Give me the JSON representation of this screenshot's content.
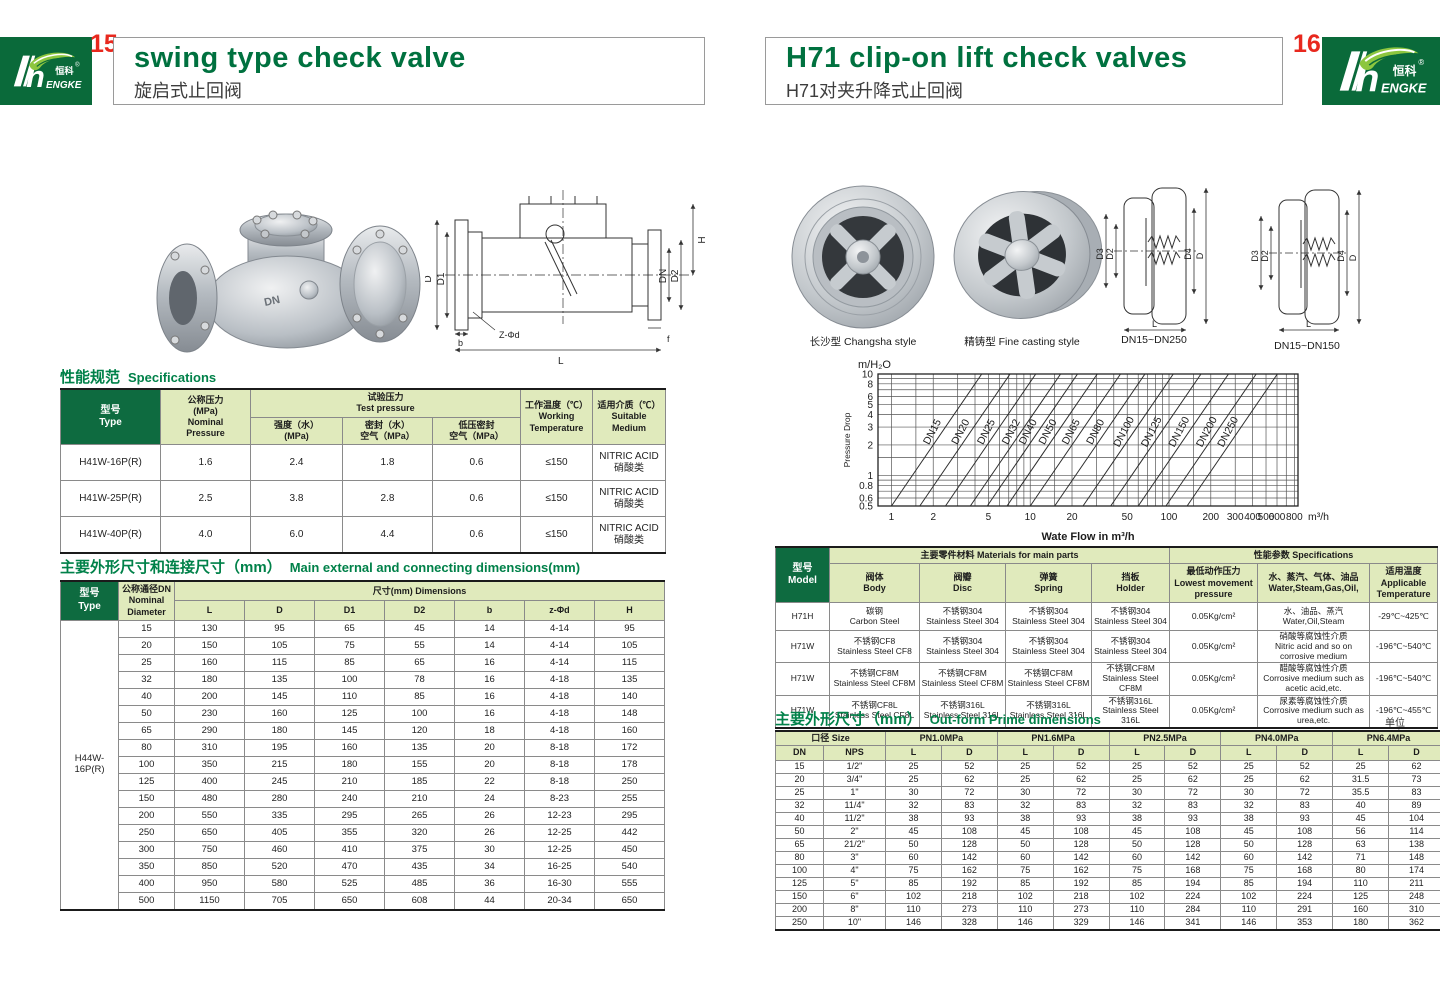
{
  "brand": {
    "logo_cn": "恒科",
    "registered": "®",
    "logo_word": "ENGKE"
  },
  "colors": {
    "dark_green": "#0a6a3a",
    "header_cell_green": "#0e6b40",
    "light_green": "#e0eabc",
    "title_green": "#00713f",
    "red": "#e8281e"
  },
  "page_left": {
    "page_no": "15",
    "title": "swing type check valve",
    "subtitle": "旋启式止回阀",
    "spec_title_zh": "性能规范",
    "spec_title_en": "Specifications",
    "spec_table": {
      "h_type": "型号|Type",
      "h_nominal": "公称压力|(MPa)|Nominal|Pressure",
      "h_test": "试验压力|Test pressure",
      "h_strength": "强度（水）|(MPa)",
      "h_seal": "密封（水）|空气（MPa）",
      "h_low": "低压密封|空气（MPa）",
      "h_working": "工作温度（℃）|Working|Temperature",
      "h_medium": "适用介质（℃）|Suitable|Medium",
      "rows": [
        [
          "H41W-16P(R)",
          "1.6",
          "2.4",
          "1.8",
          "0.6",
          "≤150",
          "NITRIC ACID|硝酸类"
        ],
        [
          "H41W-25P(R)",
          "2.5",
          "3.8",
          "2.8",
          "0.6",
          "≤150",
          "NITRIC ACID|硝酸类"
        ],
        [
          "H41W-40P(R)",
          "4.0",
          "6.0",
          "4.4",
          "0.6",
          "≤150",
          "NITRIC ACID|硝酸类"
        ]
      ]
    },
    "dim_title_zh": "主要外形尺寸和连接尺寸（mm）",
    "dim_title_en": "Main external and connecting dimensions(mm)",
    "dim_table": {
      "h_type": "型号|Type",
      "h_dn": "公称通径DN|Nominal|Diameter",
      "h_dims": "尺寸(mm) Dimensions",
      "cols": [
        "L",
        "D",
        "D1",
        "D2",
        "b",
        "z-Φd",
        "H"
      ],
      "type_label": "H44W-16P(R)",
      "rows": [
        [
          "15",
          "130",
          "95",
          "65",
          "45",
          "14",
          "4-14",
          "95"
        ],
        [
          "20",
          "150",
          "105",
          "75",
          "55",
          "14",
          "4-14",
          "105"
        ],
        [
          "25",
          "160",
          "115",
          "85",
          "65",
          "16",
          "4-14",
          "115"
        ],
        [
          "32",
          "180",
          "135",
          "100",
          "78",
          "16",
          "4-18",
          "135"
        ],
        [
          "40",
          "200",
          "145",
          "110",
          "85",
          "16",
          "4-18",
          "140"
        ],
        [
          "50",
          "230",
          "160",
          "125",
          "100",
          "16",
          "4-18",
          "148"
        ],
        [
          "65",
          "290",
          "180",
          "145",
          "120",
          "18",
          "4-18",
          "160"
        ],
        [
          "80",
          "310",
          "195",
          "160",
          "135",
          "20",
          "8-18",
          "172"
        ],
        [
          "100",
          "350",
          "215",
          "180",
          "155",
          "20",
          "8-18",
          "178"
        ],
        [
          "125",
          "400",
          "245",
          "210",
          "185",
          "22",
          "8-18",
          "250"
        ],
        [
          "150",
          "480",
          "280",
          "240",
          "210",
          "24",
          "8-23",
          "255"
        ],
        [
          "200",
          "550",
          "335",
          "295",
          "265",
          "26",
          "12-23",
          "295"
        ],
        [
          "250",
          "650",
          "405",
          "355",
          "320",
          "26",
          "12-25",
          "442"
        ],
        [
          "300",
          "750",
          "460",
          "410",
          "375",
          "30",
          "12-25",
          "450"
        ],
        [
          "350",
          "850",
          "520",
          "470",
          "435",
          "34",
          "16-25",
          "540"
        ],
        [
          "400",
          "950",
          "580",
          "525",
          "485",
          "36",
          "16-30",
          "555"
        ],
        [
          "500",
          "1150",
          "705",
          "650",
          "608",
          "44",
          "20-34",
          "650"
        ]
      ]
    },
    "drawing_labels": {
      "d": "D",
      "d1": "D1",
      "dn": "DN",
      "d2": "D2",
      "h": "H",
      "l": "L",
      "b": "b",
      "f": "f",
      "zd": "Z-Φd"
    }
  },
  "page_right": {
    "page_no": "16",
    "title": "H71 clip-on lift check valves",
    "subtitle": "H71对夹升降式止回阀",
    "caption_photo1": "长沙型 Changsha style",
    "caption_photo2": "精铸型 Fine casting style",
    "caption_draw1": "DN15~DN250",
    "caption_draw2": "DN15~DN150",
    "draw_labels": {
      "d3": "D3",
      "d2": "D2",
      "d4": "D4",
      "d": "D",
      "l": "L"
    },
    "materials_table": {
      "h_model": "型号|Model",
      "h_materials": "主要零件材料 Materials for main parts",
      "h_specs": "性能参数 Specifications",
      "h_body": "阀体|Body",
      "h_disc": "阀瓣|Disc",
      "h_spring": "弹簧|Spring",
      "h_holder": "挡板|Holder",
      "h_pressure": "最低动作压力|Lowest movement|pressure",
      "h_media": "水、蒸汽、气体、油品|Water,Steam,Gas,Oil,",
      "h_temp": "适用温度|Applicable|Temperature",
      "rows": [
        [
          "H71H",
          "碳钢|Carbon Steel",
          "不锈钢304|Stainless Steel 304",
          "不锈钢304|Stainless Steel 304",
          "不锈钢304|Stainless Steel 304",
          "0.05Kg/cm²",
          "水、油品、蒸汽|Water,Oil,Steam",
          "-29℃~425℃"
        ],
        [
          "H71W",
          "不锈钢CF8|Stainless Steel CF8",
          "不锈钢304|Stainless Steel 304",
          "不锈钢304|Stainless Steel 304",
          "不锈钢304|Stainless Steel 304",
          "0.05Kg/cm²",
          "硝酸等腐蚀性介质|Nitric acid and so on corrosive medium",
          "-196℃~540℃"
        ],
        [
          "H71W",
          "不锈钢CF8M|Stainless Steel CF8M",
          "不锈钢CF8M|Stainless Steel CF8M",
          "不锈钢CF8M|Stainless Steel CF8M",
          "不锈钢CF8M|Stainless Steel CF8M",
          "0.05Kg/cm²",
          "醋酸等腐蚀性介质|Corrosive medium such as acetic acid,etc.",
          "-196℃~540℃"
        ],
        [
          "H71W",
          "不锈钢CF8L|Stainless Steel CF8L",
          "不锈钢316L|Stainless Steel 316L",
          "不锈钢316L|Stainless Steel 316L",
          "不锈钢316L|Stainless Steel 316L",
          "0.05Kg/cm²",
          "尿素等腐蚀性介质|Corrosive medium such as urea,etc.",
          "-196℃~455℃"
        ]
      ]
    },
    "outform_title_zh": "主要外形尺寸（mm）",
    "outform_title_en": "Out-form Prime dimensions",
    "outform_unit": "单位Unit:mm",
    "outform_table": {
      "h_size": "口径 Size",
      "pn_groups": [
        "PN1.0MPa",
        "PN1.6MPa",
        "PN2.5MPa",
        "PN4.0MPa",
        "PN6.4MPa"
      ],
      "h_dn": "DN",
      "h_nps": "NPS",
      "h_l": "L",
      "h_d": "D",
      "rows": [
        [
          "15",
          "1/2\"",
          "25",
          "52",
          "25",
          "52",
          "25",
          "52",
          "25",
          "52",
          "25",
          "62"
        ],
        [
          "20",
          "3/4\"",
          "25",
          "62",
          "25",
          "62",
          "25",
          "62",
          "25",
          "62",
          "31.5",
          "73"
        ],
        [
          "25",
          "1\"",
          "30",
          "72",
          "30",
          "72",
          "30",
          "72",
          "30",
          "72",
          "35.5",
          "83"
        ],
        [
          "32",
          "11/4\"",
          "32",
          "83",
          "32",
          "83",
          "32",
          "83",
          "32",
          "83",
          "40",
          "89"
        ],
        [
          "40",
          "11/2\"",
          "38",
          "93",
          "38",
          "93",
          "38",
          "93",
          "38",
          "93",
          "45",
          "104"
        ],
        [
          "50",
          "2\"",
          "45",
          "108",
          "45",
          "108",
          "45",
          "108",
          "45",
          "108",
          "56",
          "114"
        ],
        [
          "65",
          "21/2\"",
          "50",
          "128",
          "50",
          "128",
          "50",
          "128",
          "50",
          "128",
          "63",
          "138"
        ],
        [
          "80",
          "3\"",
          "60",
          "142",
          "60",
          "142",
          "60",
          "142",
          "60",
          "142",
          "71",
          "148"
        ],
        [
          "100",
          "4\"",
          "75",
          "162",
          "75",
          "162",
          "75",
          "168",
          "75",
          "168",
          "80",
          "174"
        ],
        [
          "125",
          "5\"",
          "85",
          "192",
          "85",
          "192",
          "85",
          "194",
          "85",
          "194",
          "110",
          "211"
        ],
        [
          "150",
          "6\"",
          "102",
          "218",
          "102",
          "218",
          "102",
          "224",
          "102",
          "224",
          "125",
          "248"
        ],
        [
          "200",
          "8\"",
          "110",
          "273",
          "110",
          "273",
          "110",
          "284",
          "110",
          "291",
          "160",
          "310"
        ],
        [
          "250",
          "10\"",
          "146",
          "328",
          "146",
          "329",
          "146",
          "341",
          "146",
          "353",
          "180",
          "362"
        ]
      ]
    }
  },
  "chart_data": {
    "type": "line",
    "title": "",
    "ylabel": "Pressure Drop",
    "y_unit_label": "m/H₂O",
    "xlabel": "Wate Flow in m³/h",
    "x_unit_label": "m³/h",
    "x_scale": "log",
    "y_scale": "log",
    "xlim": [
      0.8,
      850
    ],
    "ylim": [
      0.5,
      10
    ],
    "x_tick_labels": [
      1,
      2,
      5,
      10,
      20,
      50,
      100,
      200,
      300,
      400,
      500,
      600,
      800
    ],
    "y_tick_labels": [
      10,
      8,
      6,
      5,
      4,
      3,
      2,
      1,
      0.8,
      0.6,
      0.5
    ],
    "x_gridlines": [
      1,
      1.5,
      2,
      3,
      4,
      5,
      6,
      7,
      8,
      9,
      10,
      15,
      20,
      30,
      40,
      50,
      60,
      70,
      80,
      90,
      100,
      150,
      200,
      300,
      400,
      500,
      600,
      700,
      800
    ],
    "y_gridlines": [
      0.5,
      0.6,
      0.7,
      0.8,
      0.9,
      1,
      1.5,
      2,
      3,
      4,
      5,
      6,
      7,
      8,
      9,
      10
    ],
    "loglog_slope": 2,
    "series": [
      {
        "name": "DN15",
        "x_at_ymin": 1.0
      },
      {
        "name": "DN20",
        "x_at_ymin": 1.6
      },
      {
        "name": "DN25",
        "x_at_ymin": 2.45
      },
      {
        "name": "DN32",
        "x_at_ymin": 3.7
      },
      {
        "name": "DN40",
        "x_at_ymin": 4.9
      },
      {
        "name": "DN50",
        "x_at_ymin": 6.8
      },
      {
        "name": "DN65",
        "x_at_ymin": 10
      },
      {
        "name": "DN80",
        "x_at_ymin": 15
      },
      {
        "name": "DN100",
        "x_at_ymin": 24
      },
      {
        "name": "DN125",
        "x_at_ymin": 38
      },
      {
        "name": "DN150",
        "x_at_ymin": 60
      },
      {
        "name": "DN200",
        "x_at_ymin": 95
      },
      {
        "name": "DN250",
        "x_at_ymin": 135
      }
    ]
  }
}
